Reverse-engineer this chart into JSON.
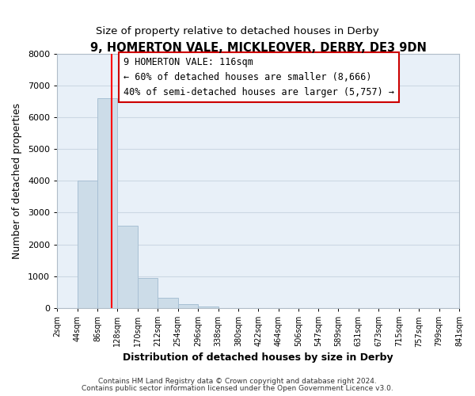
{
  "title": "9, HOMERTON VALE, MICKLEOVER, DERBY, DE3 9DN",
  "subtitle": "Size of property relative to detached houses in Derby",
  "xlabel": "Distribution of detached houses by size in Derby",
  "ylabel": "Number of detached properties",
  "bin_edges": [
    2,
    44,
    86,
    128,
    170,
    212,
    254,
    296,
    338,
    380,
    422,
    464,
    506,
    547,
    589,
    631,
    673,
    715,
    757,
    799,
    841
  ],
  "bar_heights": [
    0,
    4000,
    6600,
    2600,
    950,
    320,
    120,
    60,
    0,
    0,
    0,
    0,
    0,
    0,
    0,
    0,
    0,
    0,
    0,
    0
  ],
  "bar_color": "#ccdce8",
  "bar_edgecolor": "#a8c0d4",
  "vline_x": 116,
  "vline_color": "red",
  "ylim": [
    0,
    8000
  ],
  "xlim": [
    2,
    841
  ],
  "annotation_line1": "9 HOMERTON VALE: 116sqm",
  "annotation_line2": "← 60% of detached houses are smaller (8,666)",
  "annotation_line3": "40% of semi-detached houses are larger (5,757) →",
  "footer_line1": "Contains HM Land Registry data © Crown copyright and database right 2024.",
  "footer_line2": "Contains public sector information licensed under the Open Government Licence v3.0.",
  "tick_labels": [
    "2sqm",
    "44sqm",
    "86sqm",
    "128sqm",
    "170sqm",
    "212sqm",
    "254sqm",
    "296sqm",
    "338sqm",
    "380sqm",
    "422sqm",
    "464sqm",
    "506sqm",
    "547sqm",
    "589sqm",
    "631sqm",
    "673sqm",
    "715sqm",
    "757sqm",
    "799sqm",
    "841sqm"
  ],
  "grid_color": "#ccd8e4",
  "background_color": "#e8f0f8",
  "title_fontsize": 10.5,
  "subtitle_fontsize": 9.5,
  "axis_label_fontsize": 9,
  "tick_fontsize": 7,
  "annotation_fontsize": 8.5
}
